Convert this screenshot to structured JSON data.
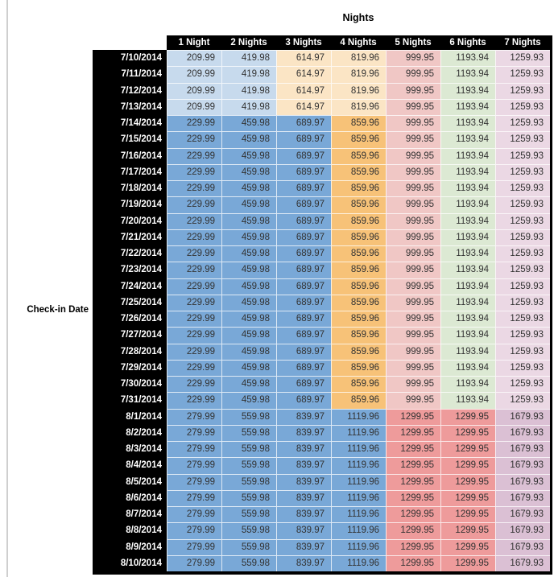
{
  "chart_data": {
    "type": "table",
    "title": "Nights",
    "row_label": "Check-in Date",
    "columns": [
      "1 Night",
      "2 Nights",
      "3 Nights",
      "4 Nights",
      "5 Nights",
      "6 Nights",
      "7 Nights"
    ],
    "rows": [
      {
        "date": "7/10/2014",
        "palette": "early_july",
        "values": [
          "209.99",
          "419.98",
          "614.97",
          "819.96",
          "999.95",
          "1193.94",
          "1259.93"
        ]
      },
      {
        "date": "7/11/2014",
        "palette": "early_july",
        "values": [
          "209.99",
          "419.98",
          "614.97",
          "819.96",
          "999.95",
          "1193.94",
          "1259.93"
        ]
      },
      {
        "date": "7/12/2014",
        "palette": "early_july",
        "values": [
          "209.99",
          "419.98",
          "614.97",
          "819.96",
          "999.95",
          "1193.94",
          "1259.93"
        ]
      },
      {
        "date": "7/13/2014",
        "palette": "early_july",
        "values": [
          "209.99",
          "419.98",
          "614.97",
          "819.96",
          "999.95",
          "1193.94",
          "1259.93"
        ]
      },
      {
        "date": "7/14/2014",
        "palette": "mid_july",
        "values": [
          "229.99",
          "459.98",
          "689.97",
          "859.96",
          "999.95",
          "1193.94",
          "1259.93"
        ]
      },
      {
        "date": "7/15/2014",
        "palette": "mid_july",
        "values": [
          "229.99",
          "459.98",
          "689.97",
          "859.96",
          "999.95",
          "1193.94",
          "1259.93"
        ]
      },
      {
        "date": "7/16/2014",
        "palette": "mid_july",
        "values": [
          "229.99",
          "459.98",
          "689.97",
          "859.96",
          "999.95",
          "1193.94",
          "1259.93"
        ]
      },
      {
        "date": "7/17/2014",
        "palette": "mid_july",
        "values": [
          "229.99",
          "459.98",
          "689.97",
          "859.96",
          "999.95",
          "1193.94",
          "1259.93"
        ]
      },
      {
        "date": "7/18/2014",
        "palette": "mid_july",
        "values": [
          "229.99",
          "459.98",
          "689.97",
          "859.96",
          "999.95",
          "1193.94",
          "1259.93"
        ]
      },
      {
        "date": "7/19/2014",
        "palette": "mid_july",
        "values": [
          "229.99",
          "459.98",
          "689.97",
          "859.96",
          "999.95",
          "1193.94",
          "1259.93"
        ]
      },
      {
        "date": "7/20/2014",
        "palette": "mid_july",
        "values": [
          "229.99",
          "459.98",
          "689.97",
          "859.96",
          "999.95",
          "1193.94",
          "1259.93"
        ]
      },
      {
        "date": "7/21/2014",
        "palette": "mid_july",
        "values": [
          "229.99",
          "459.98",
          "689.97",
          "859.96",
          "999.95",
          "1193.94",
          "1259.93"
        ]
      },
      {
        "date": "7/22/2014",
        "palette": "mid_july",
        "values": [
          "229.99",
          "459.98",
          "689.97",
          "859.96",
          "999.95",
          "1193.94",
          "1259.93"
        ]
      },
      {
        "date": "7/23/2014",
        "palette": "mid_july",
        "values": [
          "229.99",
          "459.98",
          "689.97",
          "859.96",
          "999.95",
          "1193.94",
          "1259.93"
        ]
      },
      {
        "date": "7/24/2014",
        "palette": "mid_july",
        "values": [
          "229.99",
          "459.98",
          "689.97",
          "859.96",
          "999.95",
          "1193.94",
          "1259.93"
        ]
      },
      {
        "date": "7/25/2014",
        "palette": "mid_july",
        "values": [
          "229.99",
          "459.98",
          "689.97",
          "859.96",
          "999.95",
          "1193.94",
          "1259.93"
        ]
      },
      {
        "date": "7/26/2014",
        "palette": "mid_july",
        "values": [
          "229.99",
          "459.98",
          "689.97",
          "859.96",
          "999.95",
          "1193.94",
          "1259.93"
        ]
      },
      {
        "date": "7/27/2014",
        "palette": "mid_july",
        "values": [
          "229.99",
          "459.98",
          "689.97",
          "859.96",
          "999.95",
          "1193.94",
          "1259.93"
        ]
      },
      {
        "date": "7/28/2014",
        "palette": "mid_july",
        "values": [
          "229.99",
          "459.98",
          "689.97",
          "859.96",
          "999.95",
          "1193.94",
          "1259.93"
        ]
      },
      {
        "date": "7/29/2014",
        "palette": "mid_july",
        "values": [
          "229.99",
          "459.98",
          "689.97",
          "859.96",
          "999.95",
          "1193.94",
          "1259.93"
        ]
      },
      {
        "date": "7/30/2014",
        "palette": "mid_july",
        "values": [
          "229.99",
          "459.98",
          "689.97",
          "859.96",
          "999.95",
          "1193.94",
          "1259.93"
        ]
      },
      {
        "date": "7/31/2014",
        "palette": "mid_july",
        "values": [
          "229.99",
          "459.98",
          "689.97",
          "859.96",
          "999.95",
          "1193.94",
          "1259.93"
        ]
      },
      {
        "date": "8/1/2014",
        "palette": "august",
        "values": [
          "279.99",
          "559.98",
          "839.97",
          "1119.96",
          "1299.95",
          "1299.95",
          "1679.93"
        ]
      },
      {
        "date": "8/2/2014",
        "palette": "august",
        "values": [
          "279.99",
          "559.98",
          "839.97",
          "1119.96",
          "1299.95",
          "1299.95",
          "1679.93"
        ]
      },
      {
        "date": "8/3/2014",
        "palette": "august",
        "values": [
          "279.99",
          "559.98",
          "839.97",
          "1119.96",
          "1299.95",
          "1299.95",
          "1679.93"
        ]
      },
      {
        "date": "8/4/2014",
        "palette": "august",
        "values": [
          "279.99",
          "559.98",
          "839.97",
          "1119.96",
          "1299.95",
          "1299.95",
          "1679.93"
        ]
      },
      {
        "date": "8/5/2014",
        "palette": "august",
        "values": [
          "279.99",
          "559.98",
          "839.97",
          "1119.96",
          "1299.95",
          "1299.95",
          "1679.93"
        ]
      },
      {
        "date": "8/6/2014",
        "palette": "august",
        "values": [
          "279.99",
          "559.98",
          "839.97",
          "1119.96",
          "1299.95",
          "1299.95",
          "1679.93"
        ]
      },
      {
        "date": "8/7/2014",
        "palette": "august",
        "values": [
          "279.99",
          "559.98",
          "839.97",
          "1119.96",
          "1299.95",
          "1299.95",
          "1679.93"
        ]
      },
      {
        "date": "8/8/2014",
        "palette": "august",
        "values": [
          "279.99",
          "559.98",
          "839.97",
          "1119.96",
          "1299.95",
          "1299.95",
          "1679.93"
        ]
      },
      {
        "date": "8/9/2014",
        "palette": "august",
        "values": [
          "279.99",
          "559.98",
          "839.97",
          "1119.96",
          "1299.95",
          "1299.95",
          "1679.93"
        ]
      },
      {
        "date": "8/10/2014",
        "palette": "august",
        "values": [
          "279.99",
          "559.98",
          "839.97",
          "1119.96",
          "1299.95",
          "1299.95",
          "1679.93"
        ]
      }
    ],
    "palettes": {
      "early_july": [
        "light_blue",
        "light_blue",
        "light_tan",
        "light_tan",
        "light_red",
        "light_green",
        "light_mauve"
      ],
      "mid_july": [
        "medium_blue",
        "medium_blue",
        "medium_blue",
        "medium_orange",
        "light_red",
        "light_green",
        "light_mauve"
      ],
      "august": [
        "medium_blue",
        "medium_blue",
        "medium_blue",
        "medium_blue",
        "salmon",
        "salmon",
        "medium_mauve"
      ]
    }
  },
  "colors": {
    "light_blue": "#c7daed",
    "medium_blue": "#79a8d7",
    "light_tan": "#fbe5c5",
    "medium_orange": "#f7c278",
    "light_red": "#f0c7c5",
    "salmon": "#ee9b9b",
    "light_green": "#dce9d3",
    "light_mauve": "#ebd8e4",
    "medium_mauve": "#dbc0d4",
    "header_bg": "#000000",
    "header_text": "#ffffff"
  }
}
